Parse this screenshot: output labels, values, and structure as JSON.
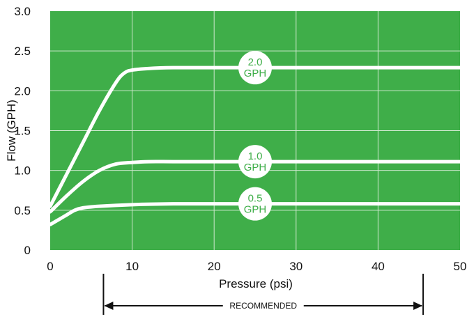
{
  "chart_data": {
    "type": "line",
    "title": "",
    "xlabel": "Pressure (psi)",
    "ylabel": "Flow (GPH)",
    "xlim": [
      0,
      50
    ],
    "ylim": [
      0,
      3.0
    ],
    "x_ticks": [
      0,
      10,
      20,
      30,
      40,
      50
    ],
    "x_tick_labels": [
      "0",
      "10",
      "20",
      "30",
      "40",
      "50"
    ],
    "y_ticks": [
      0,
      0.5,
      1.0,
      1.5,
      2.0,
      2.5,
      3.0
    ],
    "y_tick_labels": [
      "0",
      "0.5",
      "1.0",
      "1.5",
      "2.0",
      "2.5",
      "3.0"
    ],
    "grid": true,
    "background_color": "#3fae49",
    "line_color": "#ffffff",
    "series": [
      {
        "name": "2.0 GPH",
        "label_top": "2.0",
        "label_bottom": "GPH",
        "label_x": 25,
        "x": [
          0,
          2,
          4,
          6,
          8,
          9,
          10,
          12,
          15,
          20,
          30,
          40,
          50
        ],
        "y": [
          0.55,
          0.95,
          1.35,
          1.75,
          2.1,
          2.22,
          2.26,
          2.28,
          2.29,
          2.29,
          2.29,
          2.29,
          2.29
        ]
      },
      {
        "name": "1.0 GPH",
        "label_top": "1.0",
        "label_bottom": "GPH",
        "label_x": 25,
        "x": [
          0,
          2,
          4,
          6,
          8,
          10,
          12,
          15,
          20,
          30,
          40,
          50
        ],
        "y": [
          0.48,
          0.68,
          0.86,
          1.0,
          1.08,
          1.1,
          1.11,
          1.11,
          1.11,
          1.11,
          1.11,
          1.11
        ]
      },
      {
        "name": "0.5 GPH",
        "label_top": "0.5",
        "label_bottom": "GPH",
        "label_x": 25,
        "x": [
          0,
          1,
          2,
          3,
          4,
          6,
          10,
          15,
          20,
          30,
          40,
          50
        ],
        "y": [
          0.32,
          0.38,
          0.44,
          0.5,
          0.53,
          0.55,
          0.57,
          0.58,
          0.58,
          0.58,
          0.58,
          0.58
        ]
      }
    ],
    "recommended": {
      "label": "RECOMMENDED",
      "range": [
        6.5,
        45.5
      ]
    }
  }
}
